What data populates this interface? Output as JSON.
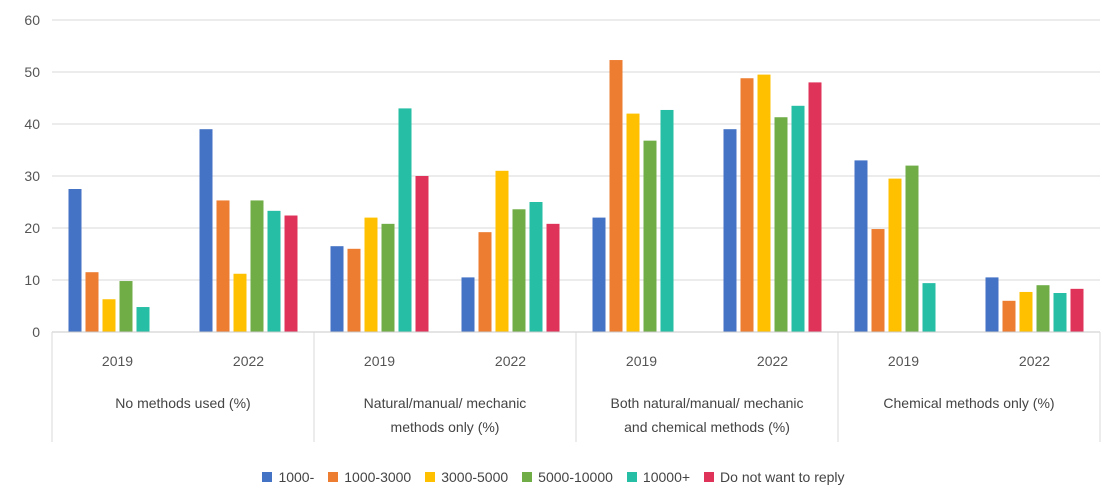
{
  "chart_data": {
    "type": "bar",
    "ylim": [
      0,
      60
    ],
    "yticks": [
      0,
      10,
      20,
      30,
      40,
      50,
      60
    ],
    "grid": true,
    "legend_position": "bottom",
    "groups": [
      {
        "label": "No methods used (%)",
        "label_lines": [
          "No methods used (%)"
        ],
        "years": [
          "2019",
          "2022"
        ]
      },
      {
        "label": "Natural/manual/ mechanic methods only (%)",
        "label_lines": [
          "Natural/manual/ mechanic",
          "methods only (%)"
        ],
        "years": [
          "2019",
          "2022"
        ]
      },
      {
        "label": "Both natural/manual/ mechanic and chemical methods (%)",
        "label_lines": [
          "Both natural/manual/ mechanic",
          "and chemical methods (%)"
        ],
        "years": [
          "2019",
          "2022"
        ]
      },
      {
        "label": "Chemical methods only (%)",
        "label_lines": [
          "Chemical methods only (%)"
        ],
        "years": [
          "2019",
          "2022"
        ]
      }
    ],
    "series": [
      {
        "name": "1000-",
        "color": "#4472C4",
        "values": [
          27.5,
          39,
          16.5,
          10.5,
          22,
          39,
          33,
          10.5
        ]
      },
      {
        "name": "1000-3000",
        "color": "#ED7D31",
        "values": [
          11.5,
          25.3,
          16,
          19.2,
          52.3,
          48.8,
          19.8,
          6
        ]
      },
      {
        "name": "3000-5000",
        "color": "#FFC000",
        "values": [
          6.3,
          11.2,
          22,
          31,
          42,
          49.5,
          29.5,
          7.7
        ]
      },
      {
        "name": "5000-10000",
        "color": "#70AD47",
        "values": [
          9.8,
          25.3,
          20.8,
          23.6,
          36.8,
          41.3,
          32,
          9
        ]
      },
      {
        "name": "10000+",
        "color": "#26BFA5",
        "values": [
          4.8,
          23.3,
          43,
          25,
          42.7,
          43.5,
          9.4,
          7.5
        ]
      },
      {
        "name": "Do not want to reply",
        "color": "#E0335A",
        "values": [
          null,
          22.4,
          30,
          20.8,
          null,
          48,
          null,
          8.3
        ]
      }
    ]
  }
}
